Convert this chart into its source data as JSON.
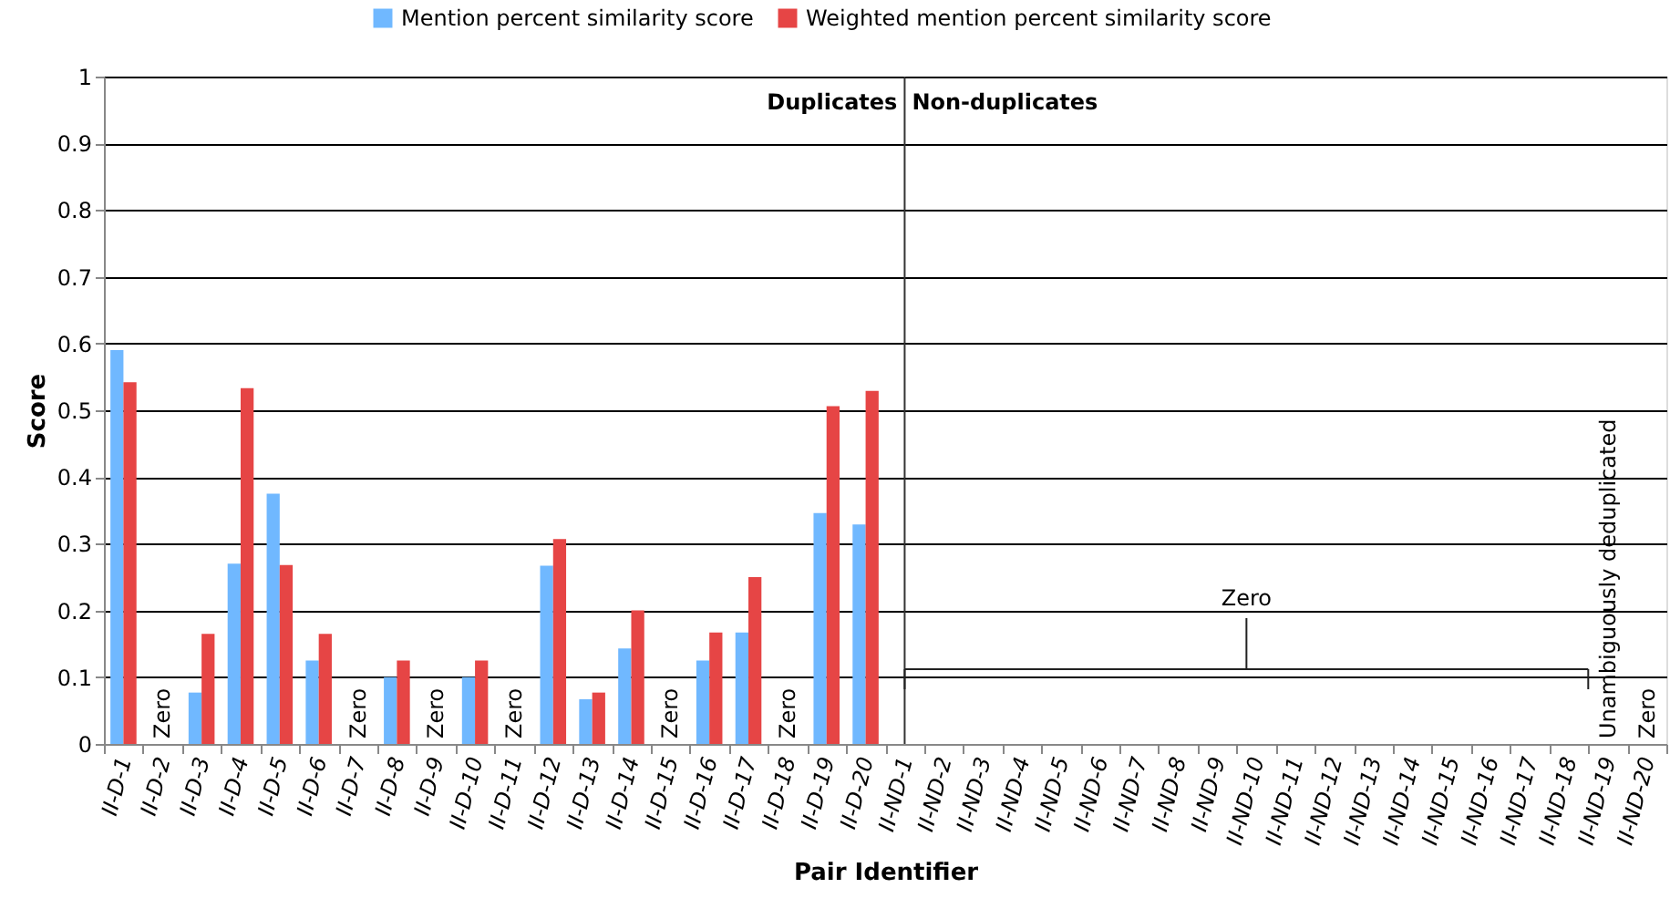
{
  "chart_data": {
    "type": "bar",
    "categories": [
      "II-D-1",
      "II-D-2",
      "II-D-3",
      "II-D-4",
      "II-D-5",
      "II-D-6",
      "II-D-7",
      "II-D-8",
      "II-D-9",
      "II-D-10",
      "II-D-11",
      "II-D-12",
      "II-D-13",
      "II-D-14",
      "II-D-15",
      "II-D-16",
      "II-D-17",
      "II-D-18",
      "II-D-19",
      "II-D-20",
      "II-ND-1",
      "II-ND-2",
      "II-ND-3",
      "II-ND-4",
      "II-ND-5",
      "II-ND-6",
      "II-ND-7",
      "II-ND-8",
      "II-ND-9",
      "II-ND-10",
      "II-ND-11",
      "II-ND-12",
      "II-ND-13",
      "II-ND-14",
      "II-ND-15",
      "II-ND-16",
      "II-ND-17",
      "II-ND-18",
      "II-ND-19",
      "II-ND-20"
    ],
    "series": [
      {
        "name": "Mention percent similarity score",
        "color": "#70b8ff",
        "values": [
          0.59,
          0,
          0.077,
          0.27,
          0.375,
          0.125,
          0,
          0.1,
          0,
          0.1,
          0,
          0.267,
          0.067,
          0.143,
          0,
          0.125,
          0.167,
          0,
          0.346,
          0.329,
          0,
          0,
          0,
          0,
          0,
          0,
          0,
          0,
          0,
          0,
          0,
          0,
          0,
          0,
          0,
          0,
          0,
          0,
          null,
          0
        ]
      },
      {
        "name": "Weighted mention percent similarity score",
        "color": "#e64545",
        "values": [
          0.542,
          0,
          0.165,
          0.533,
          0.268,
          0.165,
          0,
          0.125,
          0,
          0.125,
          0,
          0.307,
          0.077,
          0.2,
          0,
          0.167,
          0.25,
          0,
          0.506,
          0.529,
          0,
          0,
          0,
          0,
          0,
          0,
          0,
          0,
          0,
          0,
          0,
          0,
          0,
          0,
          0,
          0,
          0,
          0,
          null,
          0
        ]
      }
    ],
    "xlabel": "Pair Identifier",
    "ylabel": "Score",
    "ylim": [
      0,
      1
    ],
    "yticks": [
      0,
      0.1,
      0.2,
      0.3,
      0.4,
      0.5,
      0.6,
      0.7,
      0.8,
      0.9,
      1
    ],
    "grid": "y",
    "legend": "top",
    "ref_lines": [
      {
        "axis": "x",
        "value": "II-ND-1"
      }
    ],
    "annotations": [
      "Duplicates",
      "Non-duplicates",
      "Zero",
      "Unambiguously deduplicated",
      {
        "text": "Zero",
        "x": "II-D-2",
        "y": 0
      },
      {
        "text": "Zero",
        "x": "II-D-7",
        "y": 0
      },
      {
        "text": "Zero",
        "x": "II-D-9",
        "y": 0
      },
      {
        "text": "Zero",
        "x": "II-D-11",
        "y": 0
      },
      {
        "text": "Zero",
        "x": "II-D-15",
        "y": 0
      },
      {
        "text": "Zero",
        "x": "II-D-18",
        "y": 0
      },
      {
        "text": "Zero",
        "x": "II-ND-20",
        "y": 0
      }
    ]
  }
}
